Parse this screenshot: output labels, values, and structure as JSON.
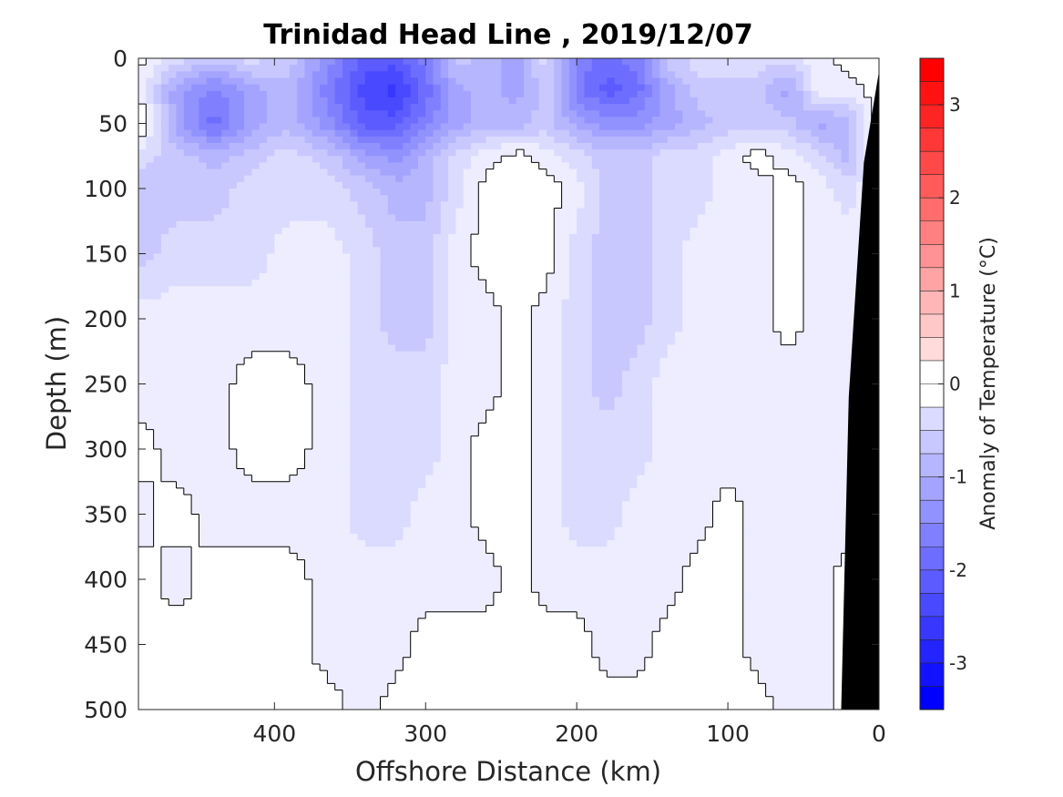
{
  "chart_data": {
    "type": "heatmap",
    "title": "Trinidad Head Line , 2019/12/07",
    "xlabel": "Offshore Distance (km)",
    "ylabel": "Depth (m)",
    "xlim": [
      490,
      0
    ],
    "ylim": [
      0,
      500
    ],
    "x_reversed": true,
    "y_reversed": true,
    "xticks": [
      "400",
      "300",
      "200",
      "100",
      "0"
    ],
    "yticks": [
      "0",
      "50",
      "100",
      "150",
      "200",
      "250",
      "300",
      "350",
      "400",
      "450",
      "500"
    ],
    "colorbar": {
      "label": "Anomaly of Temperature (°C)",
      "range": [
        -3.5,
        3.5
      ],
      "step": 0.25,
      "ticks": [
        "3",
        "2",
        "1",
        "0",
        "-1",
        "-2",
        "-3"
      ],
      "colormap": "blue-white-red",
      "negative_color": "#0000ff",
      "positive_color": "#ff0000"
    },
    "x": [
      490,
      465,
      440,
      415,
      390,
      365,
      340,
      320,
      300,
      280,
      260,
      240,
      220,
      200,
      180,
      160,
      140,
      120,
      100,
      80,
      60,
      40,
      20,
      0
    ],
    "y": [
      0,
      25,
      50,
      75,
      100,
      150,
      200,
      250,
      300,
      350,
      400,
      450,
      500
    ],
    "z": [
      [
        0.0,
        -0.5,
        -0.75,
        -0.5,
        -0.75,
        -1.5,
        -2.25,
        -2.25,
        -1.75,
        -0.75,
        -1.0,
        -1.25,
        -0.5,
        -1.75,
        -2.0,
        -1.75,
        -0.75,
        -0.5,
        -0.5,
        -0.5,
        -0.5,
        -0.25,
        0.0,
        0.0
      ],
      [
        -0.25,
        -1.25,
        -1.75,
        -1.25,
        -1.0,
        -1.75,
        -2.5,
        -2.75,
        -2.0,
        -1.25,
        -1.0,
        -1.25,
        -0.75,
        -1.75,
        -2.25,
        -2.0,
        -1.25,
        -0.75,
        -0.75,
        -0.75,
        -1.25,
        -0.25,
        -0.25,
        0.0
      ],
      [
        0.25,
        -1.25,
        -2.0,
        -1.25,
        -1.0,
        -1.5,
        -2.25,
        -2.25,
        -1.75,
        -1.25,
        -1.0,
        -1.0,
        -0.75,
        -1.25,
        -1.5,
        -1.5,
        -1.25,
        -1.0,
        -0.75,
        -0.75,
        -0.75,
        -1.25,
        -1.0,
        0.0
      ],
      [
        -0.5,
        -0.75,
        -1.0,
        -0.75,
        -0.5,
        -0.75,
        -1.25,
        -1.5,
        -1.0,
        -0.5,
        -0.25,
        0.0,
        -0.25,
        -0.5,
        -0.75,
        -0.75,
        -0.5,
        -0.5,
        -0.25,
        0.0,
        -0.25,
        -0.5,
        -1.0,
        0.0
      ],
      [
        -0.75,
        -0.75,
        -0.75,
        -0.5,
        -0.5,
        -0.5,
        -0.75,
        -1.0,
        -1.0,
        -0.5,
        0.0,
        0.0,
        0.0,
        -0.25,
        -0.75,
        -0.75,
        -0.5,
        -0.5,
        -0.25,
        -0.25,
        0.0,
        -0.25,
        -0.5,
        0.0
      ],
      [
        -0.75,
        -0.5,
        -0.5,
        -0.5,
        -0.25,
        -0.25,
        -0.5,
        -0.75,
        -0.75,
        -0.25,
        0.0,
        0.0,
        0.0,
        -0.5,
        -0.75,
        -0.75,
        -0.5,
        -0.25,
        -0.25,
        -0.25,
        0.0,
        -0.25,
        -0.25,
        0.0
      ],
      [
        -0.25,
        -0.25,
        -0.25,
        -0.25,
        -0.25,
        -0.25,
        -0.5,
        -0.75,
        -0.75,
        -0.25,
        -0.25,
        0.0,
        -0.25,
        -0.5,
        -0.75,
        -0.75,
        -0.5,
        -0.25,
        -0.25,
        -0.25,
        0.0,
        -0.25,
        -0.25,
        0.0
      ],
      [
        -0.25,
        -0.25,
        -0.25,
        0.0,
        0.0,
        -0.25,
        -0.5,
        -0.5,
        -0.5,
        -0.25,
        -0.25,
        0.0,
        -0.25,
        -0.5,
        -0.75,
        -0.5,
        -0.25,
        -0.25,
        -0.25,
        -0.25,
        -0.25,
        -0.25,
        -0.25,
        0.0
      ],
      [
        0.0,
        -0.25,
        -0.25,
        0.0,
        0.0,
        -0.25,
        -0.5,
        -0.5,
        -0.5,
        -0.25,
        0.0,
        0.0,
        -0.25,
        -0.5,
        -0.5,
        -0.5,
        -0.25,
        -0.25,
        -0.25,
        -0.25,
        -0.25,
        -0.25,
        -0.25,
        0.0
      ],
      [
        -0.25,
        0.0,
        -0.25,
        -0.25,
        -0.25,
        -0.25,
        -0.5,
        -0.5,
        -0.25,
        -0.25,
        0.0,
        0.0,
        -0.25,
        -0.5,
        -0.5,
        -0.25,
        -0.25,
        -0.25,
        0.0,
        -0.25,
        -0.25,
        -0.25,
        -0.25,
        0.0
      ],
      [
        0.0,
        -0.25,
        0.0,
        0.0,
        0.0,
        -0.25,
        -0.25,
        -0.25,
        -0.25,
        -0.25,
        -0.25,
        0.0,
        -0.25,
        -0.25,
        -0.25,
        -0.25,
        -0.25,
        0.0,
        0.0,
        -0.25,
        -0.25,
        -0.25,
        0.0,
        0.0
      ],
      [
        0.0,
        0.0,
        0.0,
        0.0,
        0.0,
        -0.25,
        -0.25,
        -0.25,
        0.0,
        0.0,
        0.0,
        0.0,
        0.0,
        0.0,
        -0.25,
        -0.25,
        0.0,
        0.0,
        0.0,
        -0.25,
        -0.25,
        -0.25,
        0.0,
        0.0
      ],
      [
        0.0,
        0.0,
        0.0,
        0.0,
        0.0,
        0.0,
        -0.25,
        0.0,
        0.0,
        0.0,
        0.0,
        0.0,
        0.0,
        0.0,
        0.0,
        0.0,
        0.0,
        0.0,
        0.0,
        0.0,
        -0.25,
        -0.25,
        0.0,
        0.0
      ]
    ],
    "bathymetry": {
      "color": "#000000",
      "bottom_depth_at_distance": [
        [
          0,
          10
        ],
        [
          10,
          80
        ],
        [
          20,
          260
        ],
        [
          25,
          500
        ]
      ]
    },
    "zero_contour_color": "#000000"
  }
}
